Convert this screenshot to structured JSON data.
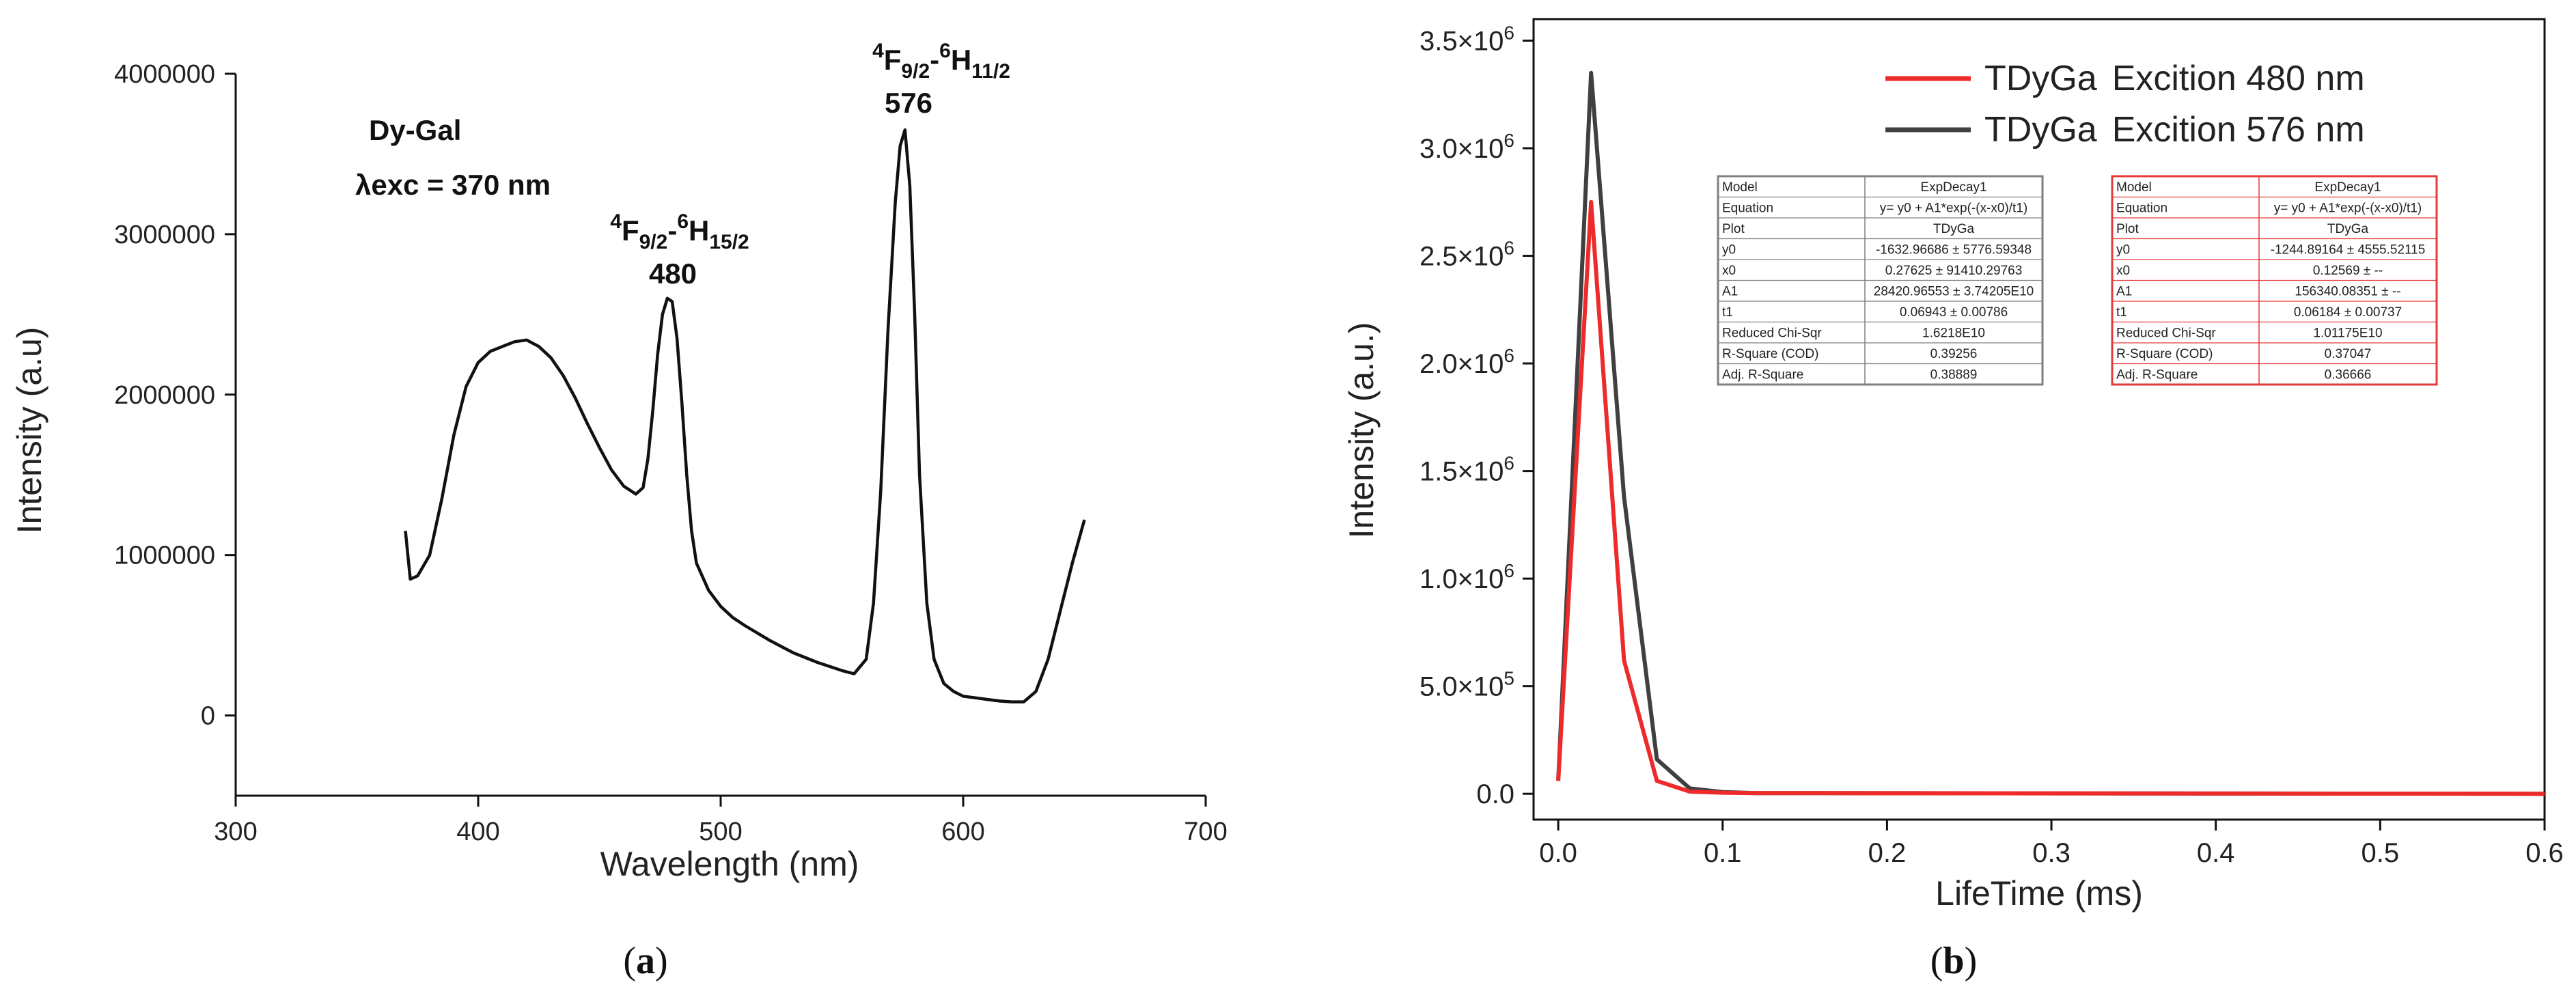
{
  "chart_data": [
    {
      "type": "line",
      "panel": "a",
      "caption": "a",
      "xlabel": "Wavelength (nm)",
      "ylabel": "Intensity (a.u)",
      "xlim": [
        300,
        700
      ],
      "ylim": [
        -500000,
        4000000
      ],
      "xticks": [
        300,
        400,
        500,
        600,
        700
      ],
      "yticks": [
        0,
        1000000,
        2000000,
        3000000,
        4000000
      ],
      "ytick_labels": [
        "0",
        "1000000",
        "2000000",
        "3000000",
        "4000000"
      ],
      "sample_label": "Dy-Gal",
      "excitation_label": "λexc = 370 nm",
      "peaks": [
        {
          "term_a": "4",
          "term_b": "F",
          "term_c": "9/2",
          "term_d": "-",
          "term_e": "6",
          "term_f": "H",
          "term_g": "15/2",
          "value": "480"
        },
        {
          "term_a": "4",
          "term_b": "F",
          "term_c": "9/2",
          "term_d": "-",
          "term_e": "6",
          "term_f": "H",
          "term_g": "11/2",
          "value": "576"
        }
      ],
      "series": [
        {
          "name": "Dy-Gal emission",
          "color": "#111111",
          "x": [
            370,
            372,
            375,
            380,
            385,
            390,
            395,
            400,
            405,
            410,
            415,
            420,
            425,
            430,
            435,
            440,
            445,
            450,
            455,
            460,
            465,
            468,
            470,
            472,
            474,
            476,
            478,
            480,
            482,
            484,
            486,
            488,
            490,
            495,
            500,
            505,
            510,
            520,
            530,
            540,
            550,
            555,
            560,
            563,
            566,
            569,
            572,
            574,
            576,
            578,
            580,
            582,
            585,
            588,
            592,
            596,
            600,
            605,
            610,
            615,
            620,
            625,
            630,
            635,
            640,
            645,
            650
          ],
          "y": [
            1150000,
            850000,
            870000,
            1000000,
            1350000,
            1750000,
            2050000,
            2200000,
            2270000,
            2300000,
            2330000,
            2340000,
            2300000,
            2230000,
            2120000,
            1980000,
            1820000,
            1670000,
            1530000,
            1430000,
            1380000,
            1420000,
            1600000,
            1900000,
            2250000,
            2500000,
            2600000,
            2580000,
            2350000,
            1950000,
            1500000,
            1150000,
            950000,
            780000,
            680000,
            610000,
            560000,
            470000,
            390000,
            330000,
            280000,
            260000,
            350000,
            700000,
            1400000,
            2400000,
            3200000,
            3550000,
            3650000,
            3300000,
            2500000,
            1500000,
            700000,
            350000,
            200000,
            150000,
            120000,
            110000,
            100000,
            90000,
            85000,
            85000,
            150000,
            350000,
            650000,
            950000,
            1220000
          ]
        }
      ]
    },
    {
      "type": "line",
      "panel": "b",
      "caption": "b",
      "xlabel": "LifeTime (ms)",
      "ylabel": "Intensity (a.u.)",
      "xlim": [
        -0.015,
        0.6
      ],
      "ylim": [
        -120000,
        3600000
      ],
      "xticks": [
        0.0,
        0.1,
        0.2,
        0.3,
        0.4,
        0.5,
        0.6
      ],
      "xtick_labels": [
        "0.0",
        "0.1",
        "0.2",
        "0.3",
        "0.4",
        "0.5",
        "0.6"
      ],
      "yticks": [
        0,
        500000,
        1000000,
        1500000,
        2000000,
        2500000,
        3000000,
        3500000
      ],
      "ytick_labels": [
        "0.0",
        "5.0×10",
        "1.0×10",
        "1.5×10",
        "2.0×10",
        "2.5×10",
        "3.0×10",
        "3.5×10"
      ],
      "ytick_exps": [
        "",
        "5",
        "6",
        "6",
        "6",
        "6",
        "6",
        "6"
      ],
      "legend_position": "top-right",
      "series": [
        {
          "name": "TDyGa",
          "detail": "Excition 480 nm",
          "color": "#ee2b2b",
          "x": [
            0.0,
            0.02,
            0.04,
            0.06,
            0.08,
            0.1,
            0.12,
            0.6
          ],
          "y": [
            60000,
            2750000,
            620000,
            60000,
            10000,
            5000,
            3000,
            0
          ]
        },
        {
          "name": "TDyGa",
          "detail": "Excition 576 nm",
          "color": "#404040",
          "x": [
            0.0,
            0.02,
            0.04,
            0.06,
            0.08,
            0.1,
            0.12,
            0.6
          ],
          "y": [
            60000,
            3350000,
            1380000,
            160000,
            25000,
            8000,
            3000,
            0
          ]
        }
      ],
      "fit_tables": [
        {
          "border_color": "#7f7f7f",
          "rows": [
            [
              "Model",
              "ExpDecay1"
            ],
            [
              "Equation",
              "y= y0 + A1*exp(-(x-x0)/t1)"
            ],
            [
              "Plot",
              "TDyGa"
            ],
            [
              "y0",
              "-1632.96686 ± 5776.59348"
            ],
            [
              "x0",
              "0.27625 ± 91410.29763"
            ],
            [
              "A1",
              "28420.96553 ± 3.74205E10"
            ],
            [
              "t1",
              "0.06943 ± 0.00786"
            ],
            [
              "Reduced Chi-Sqr",
              "1.6218E10"
            ],
            [
              "R-Square (COD)",
              "0.39256"
            ],
            [
              "Adj. R-Square",
              "0.38889"
            ]
          ]
        },
        {
          "border_color": "#e33b3b",
          "rows": [
            [
              "Model",
              "ExpDecay1"
            ],
            [
              "Equation",
              "y= y0 + A1*exp(-(x-x0)/t1)"
            ],
            [
              "Plot",
              "TDyGa"
            ],
            [
              "y0",
              "-1244.89164 ± 4555.52115"
            ],
            [
              "x0",
              "0.12569 ± --"
            ],
            [
              "A1",
              "156340.08351 ± --"
            ],
            [
              "t1",
              "0.06184 ± 0.00737"
            ],
            [
              "Reduced Chi-Sqr",
              "1.01175E10"
            ],
            [
              "R-Square (COD)",
              "0.37047"
            ],
            [
              "Adj. R-Square",
              "0.36666"
            ]
          ]
        }
      ]
    }
  ]
}
